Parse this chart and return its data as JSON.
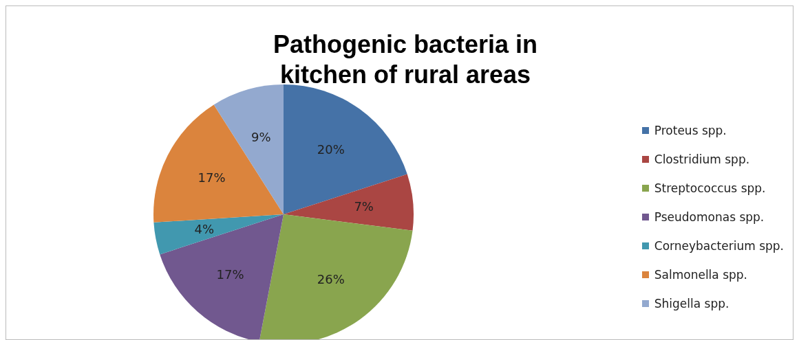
{
  "chart_data": {
    "type": "pie",
    "title": "Pathogenic bacteria in kitchen of rural areas",
    "categories": [
      "Proteus spp.",
      "Clostridium spp.",
      "Streptococcus spp.",
      "Pseudomonas spp.",
      "Corneybacterium spp.",
      "Salmonella spp.",
      "Shigella spp."
    ],
    "values": [
      20,
      7,
      26,
      17,
      4,
      17,
      9
    ],
    "value_labels": [
      "20%",
      "7%",
      "26%",
      "17%",
      "4%",
      "17%",
      "9%"
    ],
    "colors": [
      "#4572a7",
      "#aa4643",
      "#89a54e",
      "#71588f",
      "#4198af",
      "#db843d",
      "#93a9cf"
    ],
    "legend": "right"
  }
}
